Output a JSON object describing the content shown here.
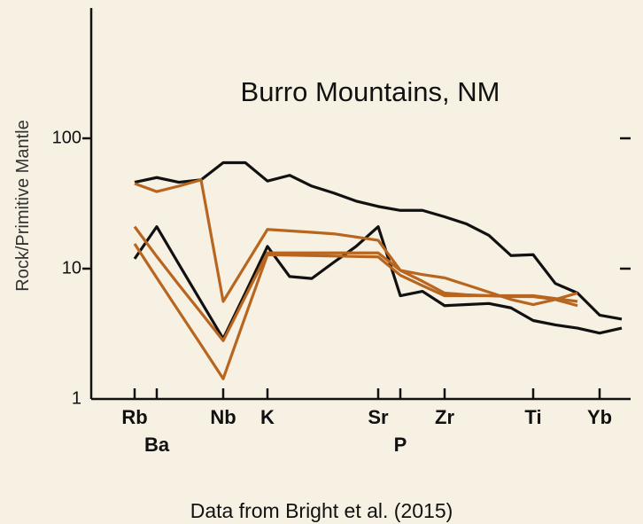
{
  "chart_data": {
    "type": "line",
    "title": "Burro Mountains, NM",
    "y_label": "Rock/Primitive Mantle",
    "note": "Data from Bright et al. (2015)",
    "categories": [
      "Rb",
      "Ba",
      null,
      null,
      "Nb",
      null,
      "K",
      null,
      null,
      null,
      null,
      "Sr",
      "P",
      null,
      "Zr",
      null,
      null,
      null,
      "Ti",
      null,
      null,
      "Yb",
      null
    ],
    "log_scale": true,
    "ylim": [
      1,
      1000
    ],
    "yticks": [
      1,
      10,
      100
    ],
    "series": [
      {
        "color": "#111111",
        "values": [
          46,
          50,
          46,
          48,
          65,
          65,
          47,
          52,
          43,
          38,
          33,
          30,
          28,
          28,
          25,
          22,
          18,
          12.6,
          12.8,
          7.7,
          6.5,
          4.4,
          4.1
        ]
      },
      {
        "color": "#111111",
        "values": [
          11.9,
          21,
          10.8,
          5.6,
          2.9,
          6.5,
          14.8,
          8.7,
          8.4,
          11.2,
          14.8,
          21,
          6.2,
          6.7,
          5.2,
          5.3,
          5.4,
          5.0,
          4.0,
          3.7,
          3.5,
          3.2,
          3.5
        ]
      },
      {
        "color": "#b8661f",
        "values": [
          45,
          39,
          43,
          48,
          5.6,
          10.6,
          20,
          19.5,
          19,
          18.5,
          17.5,
          16.5,
          9.7,
          9,
          8.5,
          7.5,
          6.6,
          5.8,
          5.3,
          5.8,
          6.5,
          null,
          null
        ]
      },
      {
        "color": "#b8661f",
        "values": [
          21,
          12.4,
          7.5,
          4.6,
          2.8,
          6.1,
          13.2,
          13.2,
          13.2,
          13.2,
          13.2,
          13.2,
          9.7,
          8,
          6.5,
          6.3,
          6.2,
          6.1,
          6.1,
          5.8,
          5.2,
          null,
          null
        ]
      },
      {
        "color": "#b8661f",
        "values": [
          15.5,
          8.5,
          4.7,
          2.6,
          1.43,
          4.3,
          12.8,
          12.7,
          12.6,
          12.5,
          12.4,
          12.3,
          8.9,
          7.4,
          6.2,
          6.2,
          6.2,
          6.2,
          6.2,
          5.9,
          5.6,
          null,
          null
        ]
      }
    ]
  }
}
